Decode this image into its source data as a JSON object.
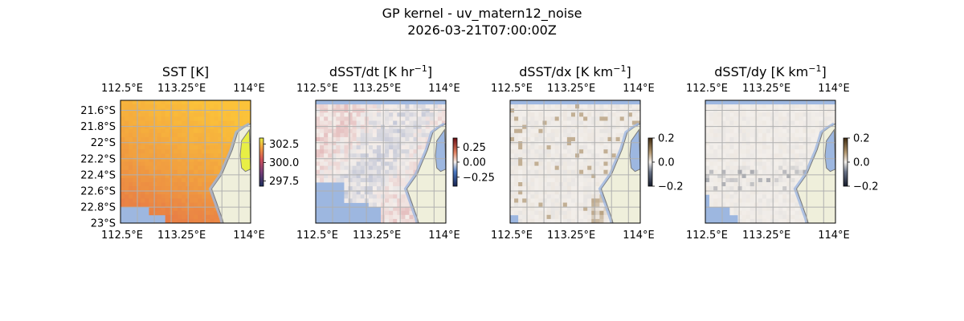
{
  "figure": {
    "title_line1": "GP kernel - uv_matern12_noise",
    "title_line2": "2026-03-21T07:00:00Z"
  },
  "colors": {
    "ocean_fill": "#9db7e0",
    "land_fill": "#efefdb",
    "coast_line": "#7a7a7a",
    "grid_line": "#b0b0b0",
    "sst_low": "#e0604a",
    "sst_high": "#fbc23a",
    "sst_cold": "#1b2f5e",
    "sst_hot": "#e8ef45",
    "div_neg": "#2b4f9a",
    "div_pos": "#b3202e",
    "div_mid": "#f4eeea",
    "gray_mid": "#f3efeb"
  },
  "chart_data": [
    {
      "type": "heatmap",
      "title_text": "SST [K]",
      "title_sup": "",
      "xlabel": "",
      "ylabel": "",
      "x_ticks": [
        "112.5°E",
        "113.25°E",
        "114°E"
      ],
      "y_ticks": [
        "21.6°S",
        "21.8°S",
        "22°S",
        "22.2°S",
        "22.4°S",
        "22.6°S",
        "22.8°S",
        "23°S"
      ],
      "x_tick_lons": [
        112.5,
        113.25,
        114.0
      ],
      "y_tick_lats": [
        -21.6,
        -21.8,
        -22.0,
        -22.2,
        -22.4,
        -22.6,
        -22.8,
        -23.0
      ],
      "lon_range": [
        112.5,
        114.05
      ],
      "lat_range": [
        -23.0,
        -21.48
      ],
      "colorbar": {
        "ticks": [
          "302.5",
          "300.0",
          "297.5"
        ],
        "tick_values": [
          302.5,
          300.0,
          297.5
        ],
        "range": [
          296.8,
          303.3
        ],
        "colormap": "thermal"
      },
      "field": "sst",
      "value_range_shown": [
        299.5,
        302.3
      ]
    },
    {
      "type": "heatmap",
      "title_text": "dSST/dt [K hr",
      "title_sup": "−1",
      "x_ticks": [
        "112.5°E",
        "113.25°E",
        "114°E"
      ],
      "x_tick_lons": [
        112.5,
        113.25,
        114.0
      ],
      "lon_range": [
        112.5,
        114.05
      ],
      "lat_range": [
        -23.0,
        -21.48
      ],
      "colorbar": {
        "ticks": [
          "0.25",
          "0.00",
          "−0.25"
        ],
        "tick_values": [
          0.25,
          0.0,
          -0.25
        ],
        "range": [
          -0.4,
          0.4
        ],
        "colormap": "diverging"
      },
      "field": "dt"
    },
    {
      "type": "heatmap",
      "title_text": "dSST/dx [K km",
      "title_sup": "−1",
      "x_ticks": [
        "112.5°E",
        "113.25°E",
        "114°E"
      ],
      "x_tick_lons": [
        112.5,
        113.25,
        114.0
      ],
      "lon_range": [
        112.5,
        114.05
      ],
      "lat_range": [
        -23.0,
        -21.48
      ],
      "colorbar": {
        "ticks": [
          "0.2",
          "0.0",
          "−0.2"
        ],
        "tick_values": [
          0.2,
          0.0,
          -0.2
        ],
        "range": [
          -0.2,
          0.2
        ],
        "colormap": "gray-brown"
      },
      "field": "dx"
    },
    {
      "type": "heatmap",
      "title_text": "dSST/dy [K km",
      "title_sup": "−1",
      "x_ticks": [
        "112.5°E",
        "113.25°E",
        "114°E"
      ],
      "x_tick_lons": [
        112.5,
        113.25,
        114.0
      ],
      "lon_range": [
        112.5,
        114.05
      ],
      "lat_range": [
        -23.0,
        -21.48
      ],
      "colorbar": {
        "ticks": [
          "0.2",
          "0.0",
          "−0.2"
        ],
        "tick_values": [
          0.2,
          0.0,
          -0.2
        ],
        "range": [
          -0.2,
          0.2
        ],
        "colormap": "gray-brown"
      },
      "field": "dy"
    }
  ]
}
